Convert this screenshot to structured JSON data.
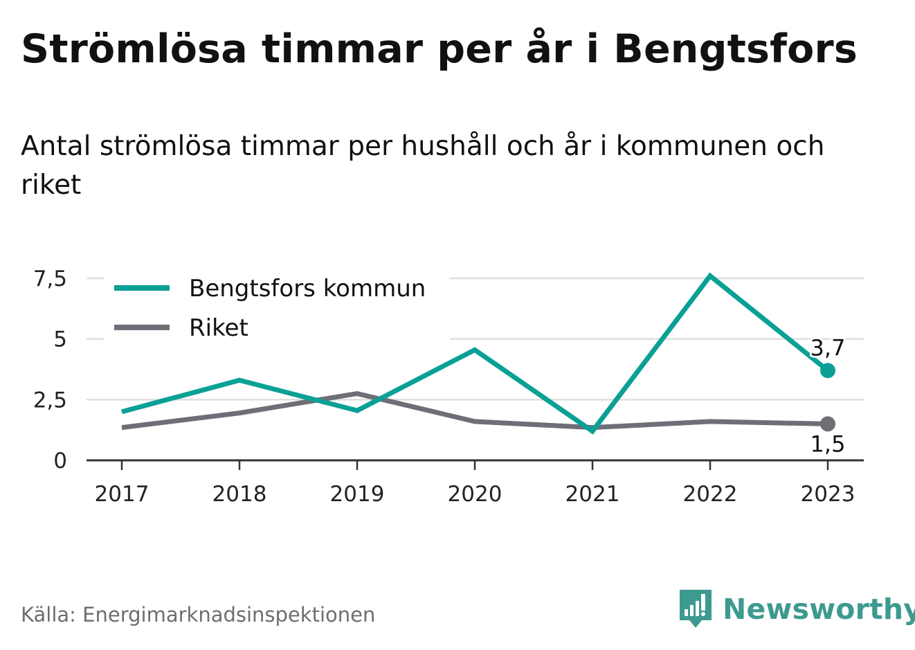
{
  "title": "Strömlösa timmar per år i Bengtsfors",
  "subtitle": "Antal strömlösa timmar per hushåll och år i kommunen och riket",
  "source": "Källa: Energimarknadsinspektionen",
  "brand": {
    "name": "Newsworthy",
    "icon": "bar-chart-speech-bubble-icon",
    "color": "#3d9a8f"
  },
  "chart_data": {
    "type": "line",
    "x": [
      "2017",
      "2018",
      "2019",
      "2020",
      "2021",
      "2022",
      "2023"
    ],
    "y_ticks": [
      0,
      2.5,
      5,
      7.5
    ],
    "y_tick_labels": [
      "0",
      "2,5",
      "5",
      "7,5"
    ],
    "ylim": [
      0,
      7.5
    ],
    "grid": true,
    "legend_position": "top-left",
    "series": [
      {
        "name": "Bengtsfors kommun",
        "color": "#0aa096",
        "values": [
          2.0,
          3.3,
          2.05,
          4.55,
          1.2,
          7.6,
          3.7
        ],
        "end_label": "3,7"
      },
      {
        "name": "Riket",
        "color": "#6e6e76",
        "values": [
          1.35,
          1.95,
          2.75,
          1.6,
          1.35,
          1.6,
          1.5
        ],
        "end_label": "1,5"
      }
    ]
  }
}
